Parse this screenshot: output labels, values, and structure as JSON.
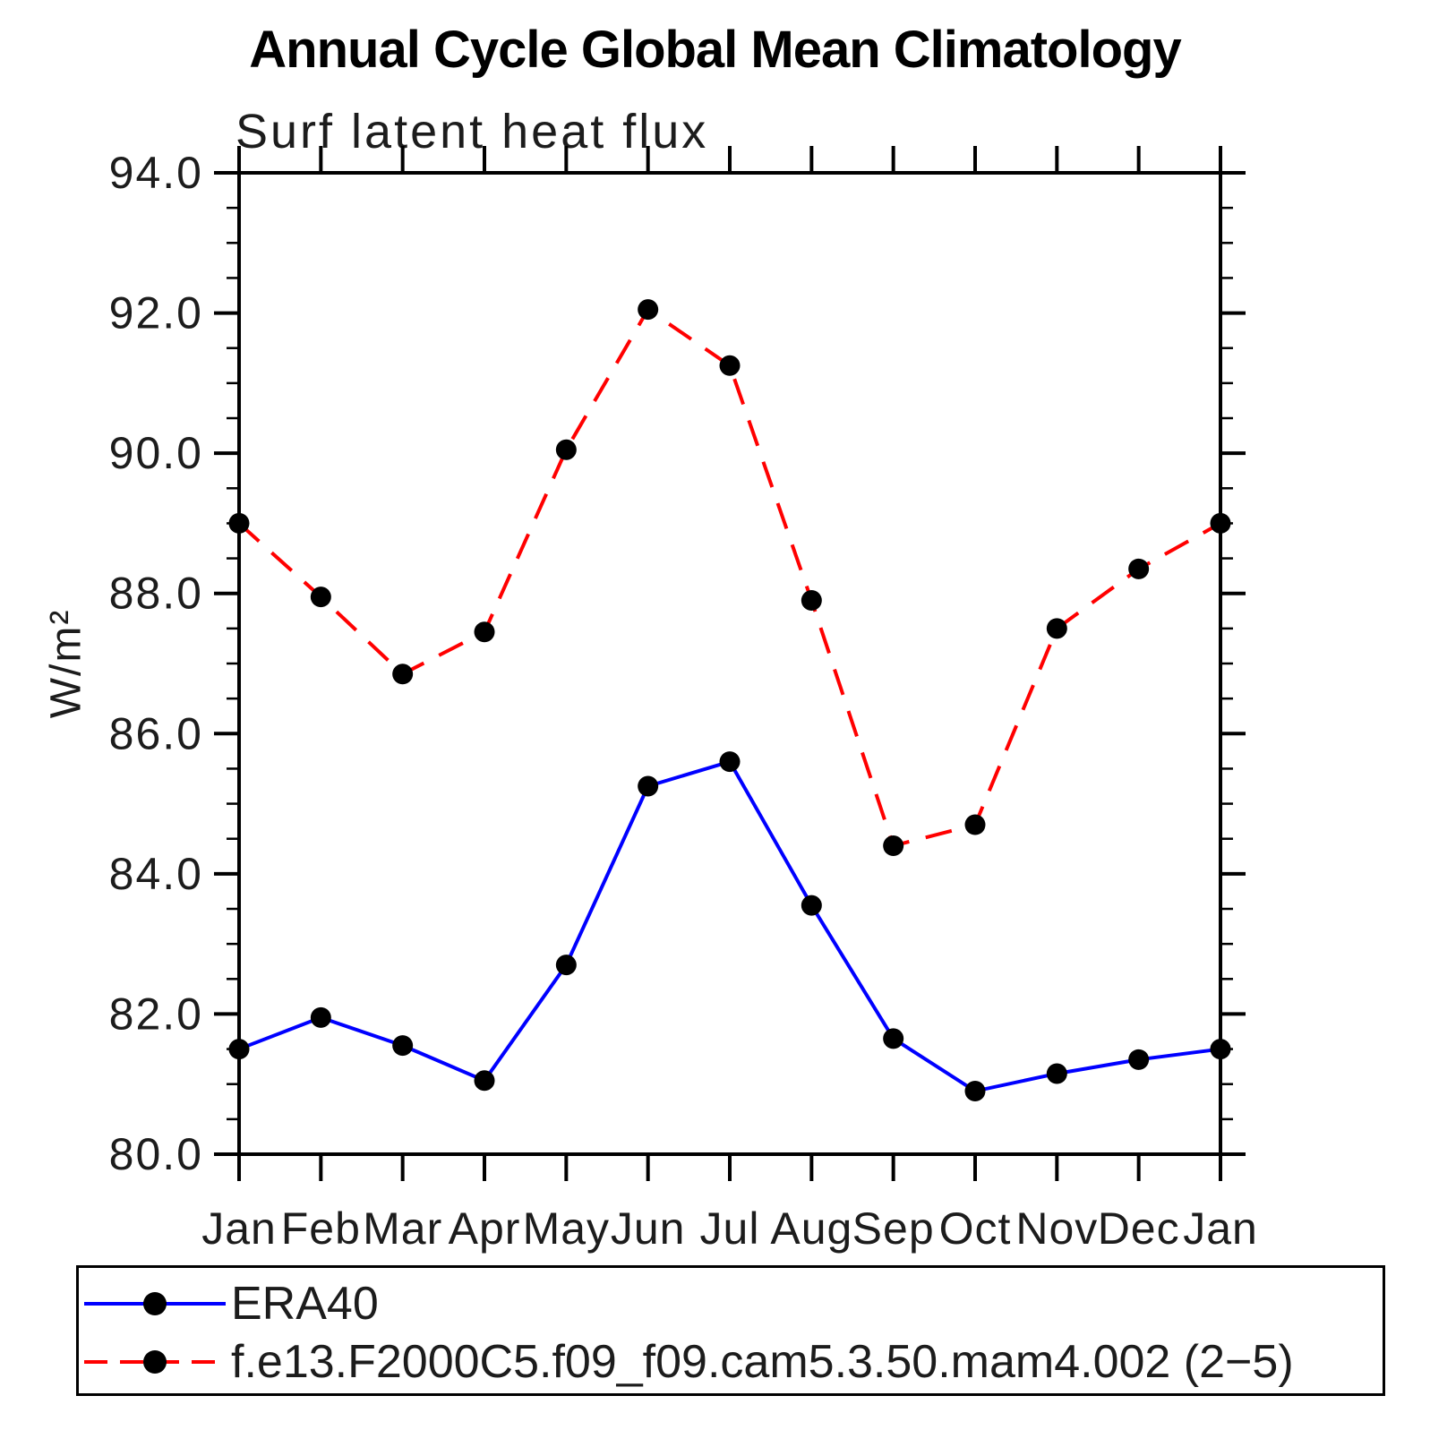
{
  "chart_data": {
    "type": "line",
    "title": "Annual Cycle Global Mean Climatology",
    "subtitle": "Surf latent heat flux",
    "ylabel": "W/m²",
    "xlabel": "",
    "categories": [
      "Jan",
      "Feb",
      "Mar",
      "Apr",
      "May",
      "Jun",
      "Jul",
      "Aug",
      "Sep",
      "Oct",
      "Nov",
      "Dec",
      "Jan"
    ],
    "series": [
      {
        "name": "ERA40",
        "color": "#0000ff",
        "line_style": "solid",
        "values": [
          81.5,
          81.95,
          81.55,
          81.05,
          82.7,
          85.25,
          85.6,
          83.55,
          81.65,
          80.9,
          81.15,
          81.35,
          81.5
        ]
      },
      {
        "name": "f.e13.F2000C5.f09_f09.cam5.3.50.mam4.002 (2−5)",
        "color": "#ff0000",
        "line_style": "dashed",
        "values": [
          89.0,
          87.95,
          86.85,
          87.45,
          90.05,
          92.05,
          91.25,
          87.9,
          84.4,
          84.7,
          87.5,
          88.35,
          89.0
        ]
      }
    ],
    "ylim": [
      80.0,
      94.0
    ],
    "y_major_step": 2.0,
    "y_minor_step": 0.5,
    "y_tick_labels": [
      "80.0",
      "82.0",
      "84.0",
      "86.0",
      "88.0",
      "90.0",
      "92.0",
      "94.0"
    ],
    "grid": false,
    "legend_position": "bottom",
    "marker": {
      "shape": "circle",
      "color": "#000000"
    },
    "frame_color": "#000000",
    "background_color": "#ffffff"
  }
}
